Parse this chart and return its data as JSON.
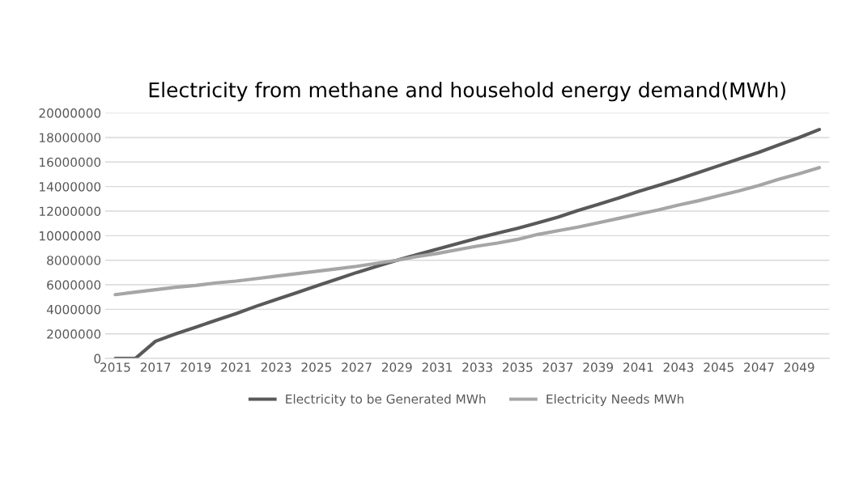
{
  "chart_data": {
    "type": "line",
    "title": "Electricity from methane and household energy demand(MWh)",
    "categories": [
      "2015",
      null,
      "2017",
      null,
      "2019",
      null,
      "2021",
      null,
      "2023",
      null,
      "2025",
      null,
      "2027",
      null,
      "2029",
      null,
      "2031",
      null,
      "2033",
      null,
      "2035",
      null,
      "2037",
      null,
      "2039",
      null,
      "2041",
      null,
      "2043",
      null,
      "2045",
      null,
      "2047",
      null,
      "2049",
      null
    ],
    "series": [
      {
        "name": "Electricity to be Generated MWh",
        "color": "#595959",
        "values": [
          0,
          0,
          1400000,
          2000000,
          2550000,
          3100000,
          3650000,
          4250000,
          4800000,
          5350000,
          5900000,
          6450000,
          7000000,
          7500000,
          8000000,
          8450000,
          8900000,
          9350000,
          9800000,
          10200000,
          10600000,
          11050000,
          11500000,
          12050000,
          12550000,
          13050000,
          13600000,
          14100000,
          14600000,
          15150000,
          15700000,
          16250000,
          16800000,
          17400000,
          18000000,
          18650000
        ]
      },
      {
        "name": "Electricity Needs MWh",
        "color": "#a6a6a6",
        "values": [
          5200000,
          5400000,
          5600000,
          5800000,
          5950000,
          6150000,
          6300000,
          6500000,
          6700000,
          6900000,
          7100000,
          7300000,
          7500000,
          7750000,
          8000000,
          8300000,
          8550000,
          8850000,
          9150000,
          9400000,
          9700000,
          10100000,
          10400000,
          10700000,
          11050000,
          11400000,
          11750000,
          12100000,
          12500000,
          12850000,
          13250000,
          13650000,
          14100000,
          14600000,
          15050000,
          15550000
        ]
      }
    ],
    "ylim": [
      0,
      20000000
    ],
    "yticks": [
      0,
      2000000,
      4000000,
      6000000,
      8000000,
      10000000,
      12000000,
      14000000,
      16000000,
      18000000,
      20000000
    ],
    "grid": "y",
    "legend": "bottom",
    "marker": "none",
    "line_style": "solid"
  }
}
